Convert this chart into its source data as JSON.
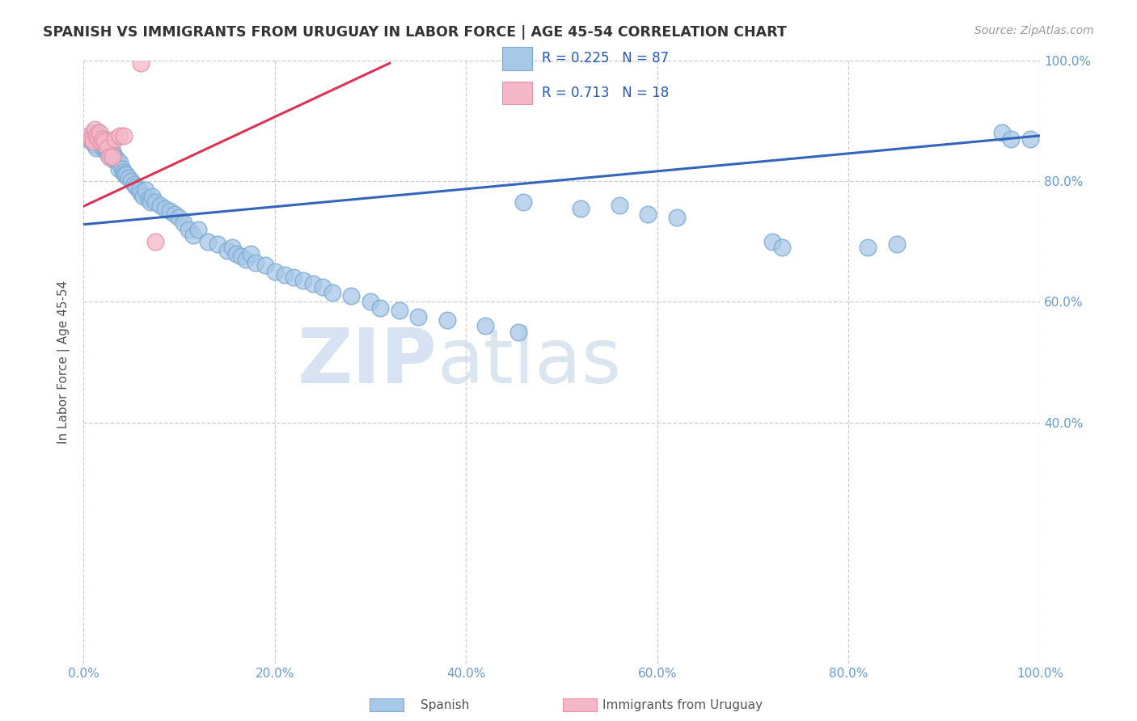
{
  "title": "SPANISH VS IMMIGRANTS FROM URUGUAY IN LABOR FORCE | AGE 45-54 CORRELATION CHART",
  "source": "Source: ZipAtlas.com",
  "ylabel": "In Labor Force | Age 45-54",
  "xlim": [
    0.0,
    1.0
  ],
  "ylim": [
    0.0,
    1.0
  ],
  "xtick_positions": [
    0.0,
    0.2,
    0.4,
    0.6,
    0.8,
    1.0
  ],
  "xtick_labels": [
    "0.0%",
    "20.0%",
    "40.0%",
    "60.0%",
    "80.0%",
    "100.0%"
  ],
  "ytick_positions": [
    0.4,
    0.6,
    0.8,
    1.0
  ],
  "ytick_labels_right": [
    "40.0%",
    "60.0%",
    "80.0%",
    "100.0%"
  ],
  "blue_color": "#a8c8e8",
  "blue_edge_color": "#7aaad0",
  "pink_color": "#f4b8c8",
  "pink_edge_color": "#e890a8",
  "line_blue_color": "#3366bb",
  "line_pink_color": "#dd3355",
  "tick_color": "#6699cc",
  "blue_line_x": [
    0.0,
    1.0
  ],
  "blue_line_y": [
    0.728,
    0.875
  ],
  "pink_line_x": [
    0.0,
    0.32
  ],
  "pink_line_y": [
    0.758,
    0.995
  ],
  "blue_x": [
    0.005,
    0.008,
    0.01,
    0.01,
    0.012,
    0.013,
    0.015,
    0.015,
    0.017,
    0.018,
    0.02,
    0.02,
    0.022,
    0.023,
    0.025,
    0.025,
    0.027,
    0.028,
    0.03,
    0.03,
    0.032,
    0.033,
    0.035,
    0.037,
    0.038,
    0.04,
    0.042,
    0.043,
    0.045,
    0.047,
    0.05,
    0.053,
    0.055,
    0.058,
    0.06,
    0.062,
    0.065,
    0.068,
    0.07,
    0.072,
    0.075,
    0.08,
    0.085,
    0.09,
    0.095,
    0.1,
    0.105,
    0.11,
    0.115,
    0.12,
    0.13,
    0.14,
    0.15,
    0.155,
    0.16,
    0.165,
    0.17,
    0.175,
    0.18,
    0.19,
    0.2,
    0.21,
    0.22,
    0.23,
    0.24,
    0.25,
    0.26,
    0.28,
    0.3,
    0.31,
    0.33,
    0.35,
    0.38,
    0.42,
    0.455,
    0.46,
    0.52,
    0.56,
    0.59,
    0.62,
    0.72,
    0.73,
    0.82,
    0.85,
    0.96,
    0.97,
    0.99
  ],
  "blue_y": [
    0.87,
    0.865,
    0.88,
    0.875,
    0.86,
    0.855,
    0.875,
    0.88,
    0.87,
    0.865,
    0.855,
    0.86,
    0.87,
    0.855,
    0.86,
    0.845,
    0.855,
    0.84,
    0.845,
    0.85,
    0.835,
    0.84,
    0.835,
    0.82,
    0.83,
    0.82,
    0.815,
    0.81,
    0.81,
    0.805,
    0.8,
    0.795,
    0.79,
    0.785,
    0.78,
    0.775,
    0.785,
    0.77,
    0.765,
    0.775,
    0.765,
    0.76,
    0.755,
    0.75,
    0.745,
    0.74,
    0.73,
    0.72,
    0.71,
    0.72,
    0.7,
    0.695,
    0.685,
    0.69,
    0.68,
    0.675,
    0.67,
    0.68,
    0.665,
    0.66,
    0.65,
    0.645,
    0.64,
    0.635,
    0.63,
    0.625,
    0.615,
    0.61,
    0.6,
    0.59,
    0.585,
    0.575,
    0.57,
    0.56,
    0.55,
    0.765,
    0.755,
    0.76,
    0.745,
    0.74,
    0.7,
    0.69,
    0.69,
    0.695,
    0.88,
    0.87,
    0.87
  ],
  "pink_x": [
    0.005,
    0.008,
    0.01,
    0.012,
    0.013,
    0.015,
    0.017,
    0.018,
    0.02,
    0.022,
    0.025,
    0.027,
    0.03,
    0.033,
    0.038,
    0.042,
    0.06,
    0.075
  ],
  "pink_y": [
    0.875,
    0.87,
    0.865,
    0.885,
    0.875,
    0.87,
    0.88,
    0.865,
    0.87,
    0.865,
    0.855,
    0.84,
    0.84,
    0.87,
    0.875,
    0.875,
    0.995,
    0.7
  ]
}
